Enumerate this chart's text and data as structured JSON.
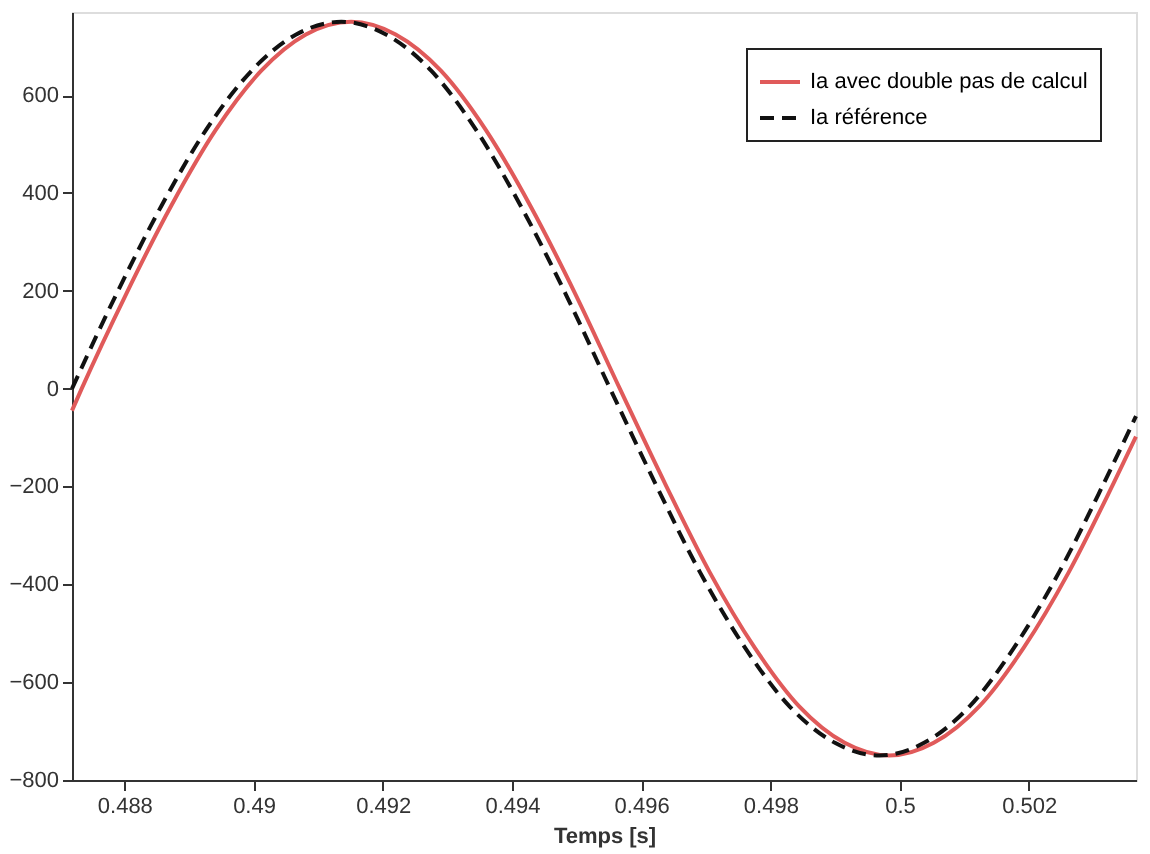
{
  "chart_data": {
    "type": "line",
    "xlabel": "Temps [s]",
    "xlim": [
      0.48719,
      0.50366
    ],
    "ylim": [
      -800,
      770
    ],
    "xticks": [
      0.488,
      0.49,
      0.492,
      0.494,
      0.496,
      0.498,
      0.5,
      0.502
    ],
    "yticks": [
      -800,
      -600,
      -400,
      -200,
      0,
      200,
      400,
      600
    ],
    "grid": false,
    "legend": "top right",
    "marker": "none",
    "series": [
      {
        "name": "Ia avec double pas de calcul",
        "color": "#e05a5a",
        "line_style": "solid",
        "x": [
          0.48719,
          0.48734,
          0.48803,
          0.48873,
          0.48942,
          0.49012,
          0.49081,
          0.49151,
          0.4922,
          0.4929,
          0.49359,
          0.49428,
          0.49498,
          0.49567,
          0.49637,
          0.49706,
          0.49776,
          0.49845,
          0.49915,
          0.49984,
          0.50053,
          0.50123,
          0.50192,
          0.50262,
          0.50331,
          0.50366
        ],
        "values": [
          -45,
          0,
          194,
          375,
          530,
          650,
          724,
          750,
          724,
          650,
          530,
          375,
          194,
          0,
          -194,
          -375,
          -530,
          -650,
          -724,
          -750,
          -724,
          -650,
          -530,
          -375,
          -194,
          -98
        ]
      },
      {
        "name": "Ia référence",
        "color": "#111111",
        "line_style": "dashed",
        "x": [
          0.48719,
          0.48788,
          0.48858,
          0.48927,
          0.48997,
          0.49066,
          0.49136,
          0.49205,
          0.49275,
          0.49344,
          0.49413,
          0.49483,
          0.49552,
          0.49622,
          0.49691,
          0.49761,
          0.4983,
          0.499,
          0.49969,
          0.50038,
          0.50108,
          0.50177,
          0.50247,
          0.50316,
          0.50366
        ],
        "values": [
          0,
          194,
          375,
          530,
          650,
          724,
          750,
          724,
          650,
          530,
          375,
          194,
          0,
          -194,
          -375,
          -530,
          -650,
          -724,
          -750,
          -724,
          -650,
          -530,
          -375,
          -194,
          -56
        ]
      }
    ]
  }
}
